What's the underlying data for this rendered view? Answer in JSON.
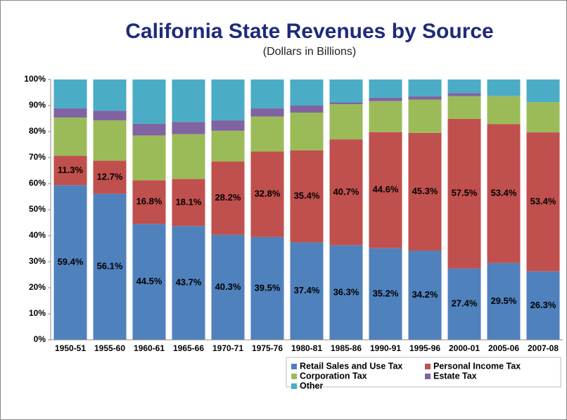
{
  "chart_data": {
    "type": "stacked_bar",
    "title": "California State Revenues by Source",
    "subtitle": "(Dollars in Billions)",
    "categories": [
      "1950-51",
      "1955-60",
      "1960-61",
      "1965-66",
      "1970-71",
      "1975-76",
      "1980-81",
      "1985-86",
      "1990-91",
      "1995-96",
      "2000-01",
      "2005-06",
      "2007-08"
    ],
    "series": [
      {
        "name": "Retail Sales and Use Tax",
        "color": "#4f81bd",
        "values": [
          59.4,
          56.1,
          44.5,
          43.7,
          40.3,
          39.5,
          37.4,
          36.3,
          35.2,
          34.2,
          27.4,
          29.5,
          26.3
        ],
        "value_labels": [
          "59.4%",
          "56.1%",
          "44.5%",
          "43.7%",
          "40.3%",
          "39.5%",
          "37.4%",
          "36.3%",
          "35.2%",
          "34.2%",
          "27.4%",
          "29.5%",
          "26.3%"
        ]
      },
      {
        "name": "Personal Income Tax",
        "color": "#c0504d",
        "values": [
          11.3,
          12.7,
          16.8,
          18.1,
          28.2,
          32.8,
          35.4,
          40.7,
          44.6,
          45.3,
          57.5,
          53.4,
          53.4
        ],
        "value_labels": [
          "11.3%",
          "12.7%",
          "16.8%",
          "18.1%",
          "28.2%",
          "32.8%",
          "35.4%",
          "40.7%",
          "44.6%",
          "45.3%",
          "57.5%",
          "53.4%",
          "53.4%"
        ]
      },
      {
        "name": "Corporation Tax",
        "color": "#9bbb59",
        "values": [
          14.7,
          15.5,
          17.2,
          17.2,
          11.8,
          13.5,
          14.5,
          13.5,
          11.9,
          12.8,
          8.7,
          10.7,
          11.6
        ]
      },
      {
        "name": "Estate Tax",
        "color": "#8064a2",
        "values": [
          3.5,
          3.7,
          4.5,
          4.7,
          4.0,
          3.1,
          2.7,
          0.7,
          1.3,
          1.3,
          1.2,
          0.1,
          0
        ]
      },
      {
        "name": "Other",
        "color": "#4bacc6",
        "values": [
          11.1,
          12.0,
          17.0,
          16.3,
          15.7,
          11.1,
          10.0,
          8.8,
          7.0,
          6.4,
          5.2,
          6.3,
          8.7
        ]
      }
    ],
    "ylim": [
      0,
      100
    ],
    "yticks": [
      {
        "value": 0,
        "label": "0%"
      },
      {
        "value": 10,
        "label": "10%"
      },
      {
        "value": 20,
        "label": "20%"
      },
      {
        "value": 30,
        "label": "30%"
      },
      {
        "value": 40,
        "label": "40%"
      },
      {
        "value": 50,
        "label": "50%"
      },
      {
        "value": 60,
        "label": "60%"
      },
      {
        "value": 70,
        "label": "70%"
      },
      {
        "value": 80,
        "label": "80%"
      },
      {
        "value": 90,
        "label": "90%"
      },
      {
        "value": 100,
        "label": "100%"
      }
    ],
    "grid": false,
    "legend": "bottom-right"
  }
}
